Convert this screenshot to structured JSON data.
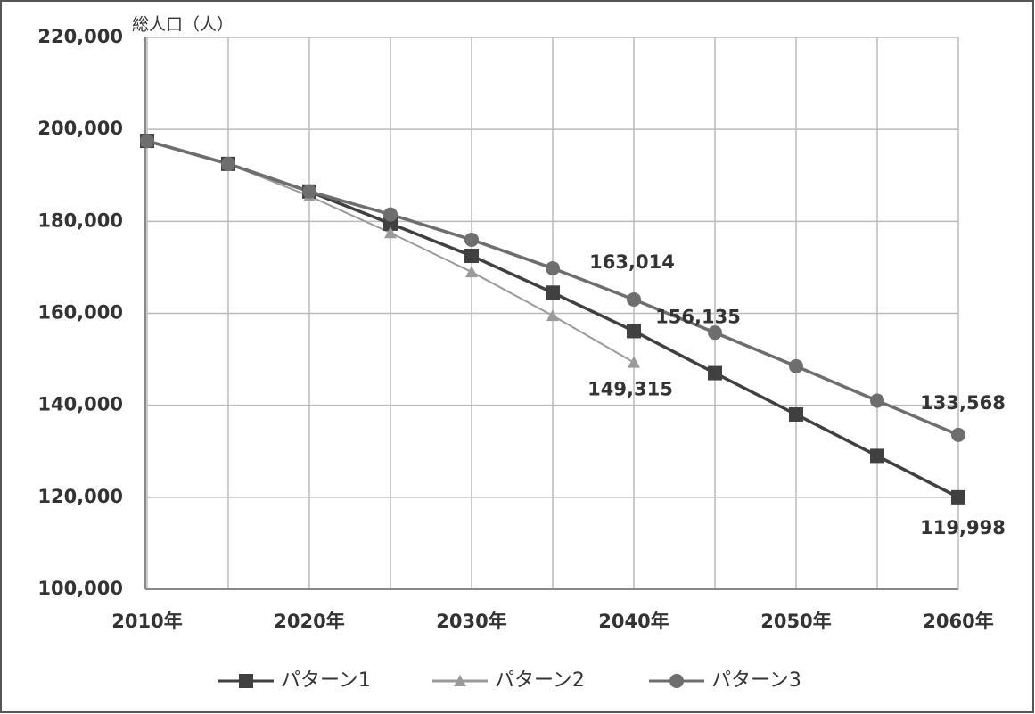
{
  "chart_data": {
    "type": "line",
    "y_label": "総人口（人）",
    "categories": [
      "2010年",
      null,
      "2020年",
      null,
      "2030年",
      null,
      "2040年",
      null,
      "2050年",
      null,
      "2060年"
    ],
    "series": [
      {
        "name": "パターン1",
        "color": "#404040",
        "marker": "square",
        "values": [
          197500,
          192500,
          186500,
          179500,
          172500,
          164500,
          156135,
          147000,
          138000,
          129000,
          119998
        ],
        "value_labels": [
          null,
          null,
          null,
          null,
          null,
          null,
          "156,135",
          null,
          null,
          null,
          "119,998"
        ]
      },
      {
        "name": "パターン2",
        "color": "#9a9a9a",
        "marker": "triangle",
        "values": [
          197500,
          192500,
          185500,
          177500,
          169000,
          159500,
          149315,
          null,
          null,
          null,
          null
        ],
        "value_labels": [
          null,
          null,
          null,
          null,
          null,
          null,
          "149,315",
          null,
          null,
          null,
          null
        ]
      },
      {
        "name": "パターン3",
        "color": "#6e6e6e",
        "marker": "circle",
        "values": [
          197500,
          192500,
          186500,
          181500,
          176000,
          169800,
          163014,
          155800,
          148500,
          141000,
          133568
        ],
        "value_labels": [
          null,
          null,
          null,
          null,
          null,
          null,
          "163,014",
          null,
          null,
          null,
          "133,568"
        ]
      }
    ],
    "ylim": [
      100000,
      220000
    ],
    "yticks": [
      {
        "value": 100000,
        "label": "100,000"
      },
      {
        "value": 120000,
        "label": "120,000"
      },
      {
        "value": 140000,
        "label": "140,000"
      },
      {
        "value": 160000,
        "label": "160,000"
      },
      {
        "value": 180000,
        "label": "180,000"
      },
      {
        "value": 200000,
        "label": "200,000"
      },
      {
        "value": 220000,
        "label": "220,000"
      }
    ],
    "grid": true,
    "legend": "bottom"
  }
}
